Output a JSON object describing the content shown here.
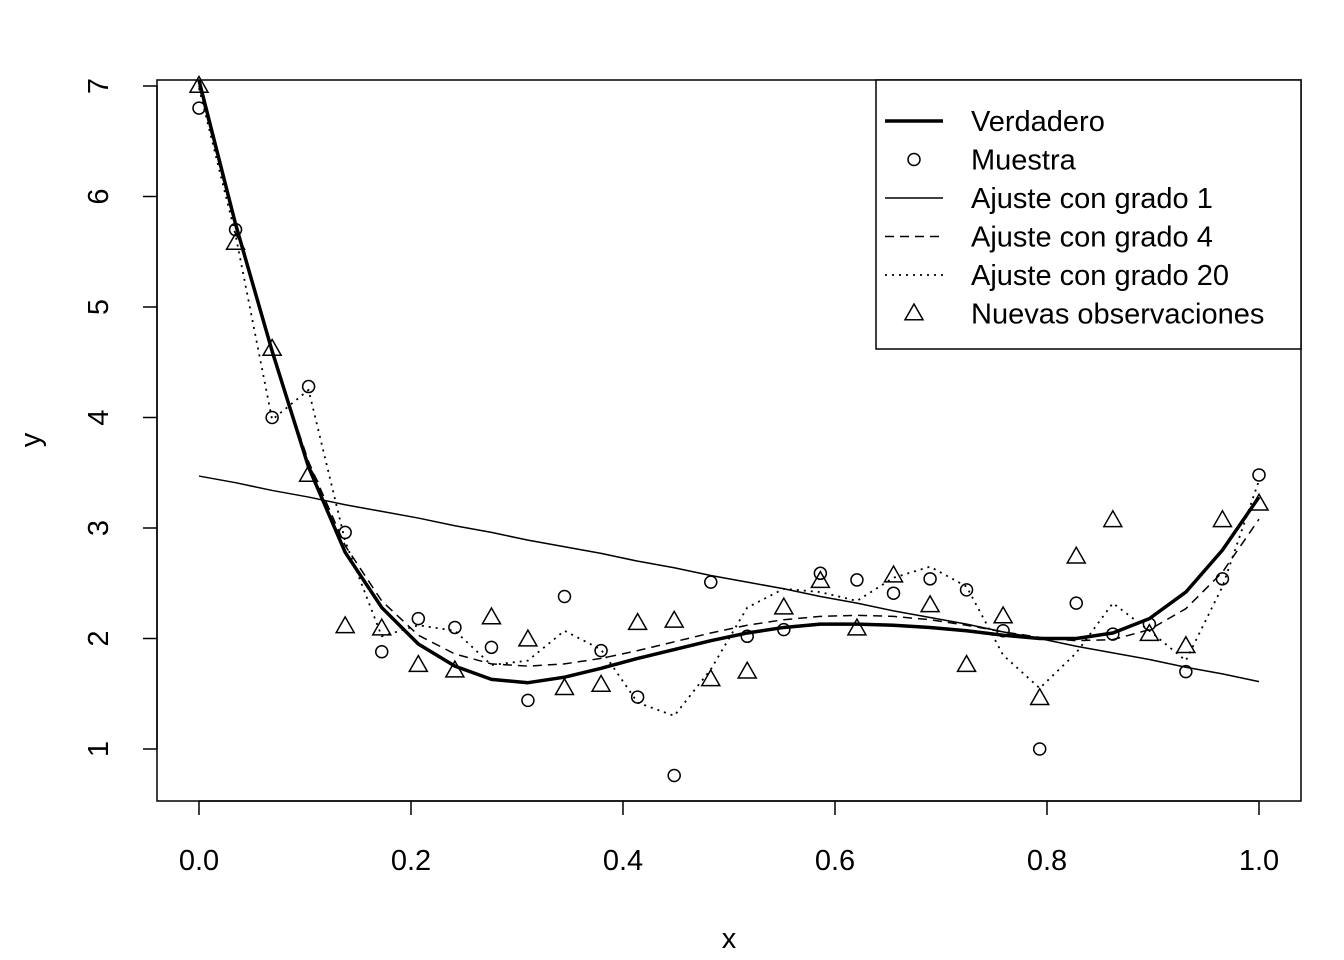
{
  "chart_data": {
    "type": "line",
    "title": "",
    "xlabel": "x",
    "ylabel": "y",
    "xlim": [
      0.0,
      1.0
    ],
    "ylim": [
      0.5,
      7.0
    ],
    "xticks": [
      "0.0",
      "0.2",
      "0.4",
      "0.6",
      "0.8",
      "1.0"
    ],
    "yticks": [
      "1",
      "2",
      "3",
      "4",
      "5",
      "6",
      "7"
    ],
    "grid": false,
    "legend_position": "top-right",
    "legend": [
      {
        "label": "Verdadero",
        "style": "thick-solid"
      },
      {
        "label": "Muestra",
        "style": "circle"
      },
      {
        "label": "Ajuste con grado 1",
        "style": "thin-solid"
      },
      {
        "label": "Ajuste con grado 4",
        "style": "dashed"
      },
      {
        "label": "Ajuste con grado 20",
        "style": "dotted"
      },
      {
        "label": "Nuevas observaciones",
        "style": "triangle"
      }
    ],
    "x": [
      0.0,
      0.0345,
      0.069,
      0.1034,
      0.1379,
      0.1724,
      0.2069,
      0.2414,
      0.2759,
      0.3103,
      0.3448,
      0.3793,
      0.4138,
      0.4483,
      0.4828,
      0.5172,
      0.5517,
      0.5862,
      0.6207,
      0.6552,
      0.6897,
      0.7241,
      0.7586,
      0.7931,
      0.8276,
      0.8621,
      0.8966,
      0.931,
      0.9655,
      1.0
    ],
    "series": [
      {
        "name": "Verdadero",
        "values": [
          7.05,
          5.75,
          4.6,
          3.55,
          2.78,
          2.28,
          1.95,
          1.75,
          1.63,
          1.6,
          1.65,
          1.73,
          1.82,
          1.9,
          1.98,
          2.05,
          2.1,
          2.13,
          2.13,
          2.12,
          2.1,
          2.07,
          2.03,
          2.0,
          2.0,
          2.05,
          2.18,
          2.42,
          2.8,
          3.28
        ]
      },
      {
        "name": "Muestra",
        "values": [
          6.8,
          5.7,
          4.0,
          4.28,
          2.96,
          1.88,
          2.18,
          2.1,
          1.92,
          1.44,
          2.38,
          1.89,
          1.47,
          0.76,
          2.51,
          2.02,
          2.08,
          2.59,
          2.53,
          2.41,
          2.54,
          2.44,
          2.07,
          1.0,
          2.32,
          2.04,
          2.13,
          1.7,
          2.54,
          3.48
        ]
      },
      {
        "name": "Ajuste con grado 1",
        "values": [
          3.47,
          3.41,
          3.34,
          3.28,
          3.21,
          3.15,
          3.09,
          3.02,
          2.96,
          2.89,
          2.83,
          2.77,
          2.7,
          2.64,
          2.57,
          2.51,
          2.45,
          2.38,
          2.32,
          2.25,
          2.19,
          2.13,
          2.06,
          2.0,
          1.93,
          1.87,
          1.81,
          1.74,
          1.68,
          1.61
        ]
      },
      {
        "name": "Ajuste con grado 4",
        "values": [
          7.0,
          5.72,
          4.58,
          3.6,
          2.84,
          2.34,
          2.03,
          1.86,
          1.77,
          1.75,
          1.77,
          1.82,
          1.89,
          1.97,
          2.05,
          2.12,
          2.17,
          2.2,
          2.21,
          2.2,
          2.17,
          2.12,
          2.06,
          2.01,
          1.98,
          1.99,
          2.08,
          2.27,
          2.6,
          3.08
        ]
      },
      {
        "name": "Ajuste con grado 20",
        "values": [
          6.98,
          5.65,
          3.98,
          4.25,
          2.88,
          2.02,
          2.12,
          2.07,
          1.76,
          1.8,
          2.07,
          1.9,
          1.42,
          1.3,
          1.72,
          2.28,
          2.45,
          2.42,
          2.34,
          2.55,
          2.65,
          2.47,
          1.85,
          1.55,
          1.87,
          2.32,
          2.07,
          1.8,
          2.47,
          3.43
        ]
      },
      {
        "name": "Nuevas observaciones",
        "values": [
          7.0,
          5.58,
          4.62,
          3.48,
          2.11,
          2.09,
          1.76,
          1.71,
          2.19,
          1.99,
          1.55,
          1.58,
          2.14,
          2.16,
          1.63,
          1.7,
          2.28,
          2.52,
          2.09,
          2.57,
          2.3,
          1.76,
          2.2,
          1.46,
          2.74,
          3.07,
          2.04,
          1.93,
          3.07,
          3.22
        ]
      }
    ]
  }
}
